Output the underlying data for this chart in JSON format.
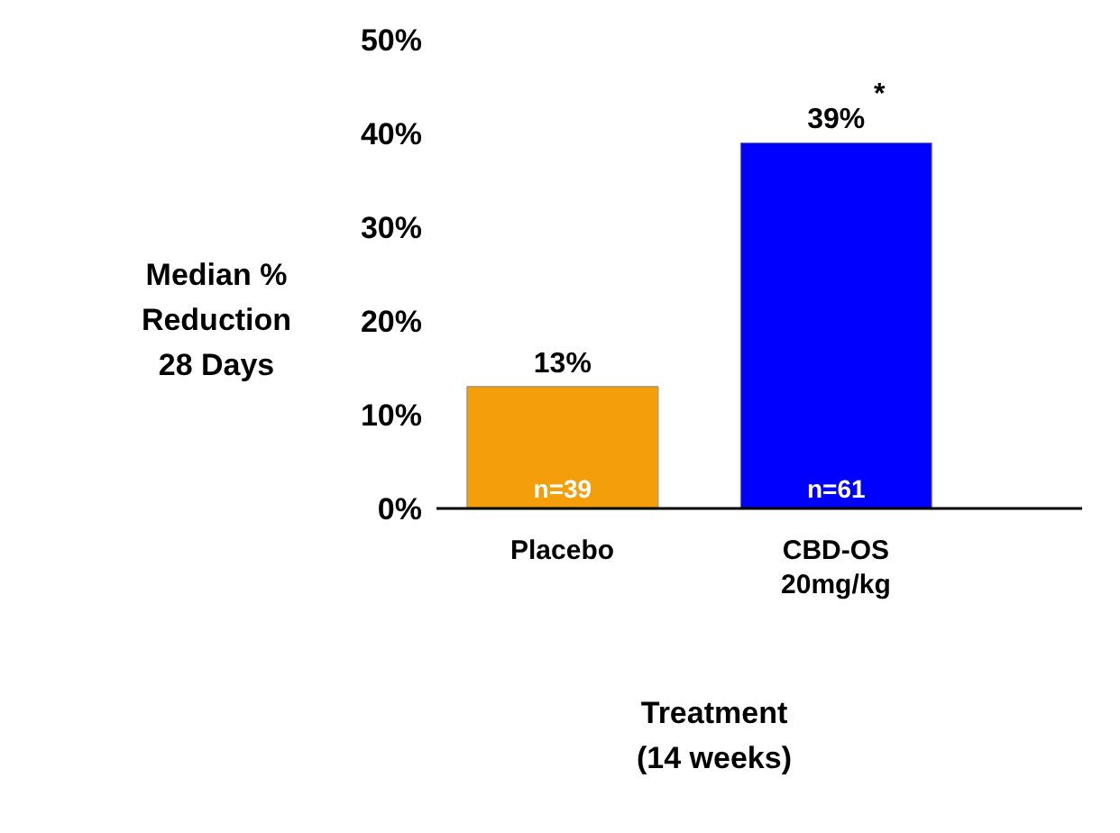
{
  "chart_data": {
    "type": "bar",
    "categories": [
      "Placebo",
      "CBD-OS\n20mg/kg"
    ],
    "series": [
      {
        "colors": [
          "#f59e0b",
          "#0000ff"
        ],
        "values": [
          13,
          39
        ]
      }
    ],
    "value_labels": [
      "13%",
      "39%"
    ],
    "ylabel": "Median %\nReduction\n28 Days",
    "xlabel": "Treatment\n(14 weeks)",
    "ylim": [
      0,
      50
    ],
    "yticks": [
      {
        "value": 0,
        "label": "0%"
      },
      {
        "value": 10,
        "label": "10%"
      },
      {
        "value": 20,
        "label": "20%"
      },
      {
        "value": 30,
        "label": "30%"
      },
      {
        "value": 40,
        "label": "40%"
      },
      {
        "value": 50,
        "label": "50%"
      }
    ],
    "annotations": [
      {
        "text": "n=39",
        "x": "Placebo",
        "y": 0
      },
      {
        "text": "n=61",
        "x": "CBD-OS\n20mg/kg",
        "y": 0
      },
      {
        "text": "*",
        "x": "CBD-OS\n20mg/kg",
        "y": 39
      }
    ],
    "grid": false,
    "legend": false
  }
}
